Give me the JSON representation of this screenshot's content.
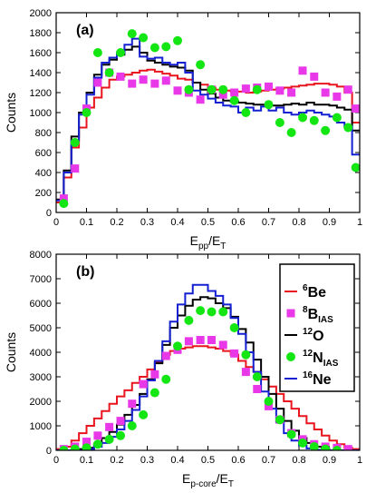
{
  "chart_data": [
    {
      "type": "line",
      "panel_label": "(a)",
      "xlabel": {
        "main": "E",
        "sub": "pp",
        "rest": "/E",
        "sub2": "T"
      },
      "ylabel": "Counts",
      "xlim": [
        0,
        1
      ],
      "ylim": [
        0,
        2000
      ],
      "x_ticks": [
        0,
        0.1,
        0.2,
        0.3,
        0.4,
        0.5,
        0.6,
        0.7,
        0.8,
        0.9,
        1
      ],
      "x_tick_labels": [
        "0",
        "0.1",
        "0.2",
        "0.3",
        "0.4",
        "0.5",
        "0.6",
        "0.7",
        "0.8",
        "0.9",
        "1"
      ],
      "y_ticks": [
        0,
        200,
        400,
        600,
        800,
        1000,
        1200,
        1400,
        1600,
        1800,
        2000
      ],
      "y_tick_labels": [
        "0",
        "200",
        "400",
        "600",
        "800",
        "1000",
        "1200",
        "1400",
        "1600",
        "1800",
        "2000"
      ],
      "grid": false,
      "bin_edges": [
        0,
        0.025,
        0.05,
        0.075,
        0.1,
        0.125,
        0.15,
        0.175,
        0.2,
        0.225,
        0.25,
        0.275,
        0.3,
        0.325,
        0.35,
        0.375,
        0.4,
        0.425,
        0.45,
        0.475,
        0.5,
        0.525,
        0.55,
        0.575,
        0.6,
        0.625,
        0.65,
        0.675,
        0.7,
        0.725,
        0.75,
        0.775,
        0.8,
        0.825,
        0.85,
        0.875,
        0.9,
        0.925,
        0.95,
        0.975,
        1
      ],
      "series": [
        {
          "key": "6Be",
          "kind": "step",
          "color": "#e8141e",
          "values": [
            100,
            350,
            650,
            850,
            1050,
            1150,
            1250,
            1330,
            1360,
            1380,
            1400,
            1420,
            1430,
            1410,
            1390,
            1370,
            1340,
            1330,
            1300,
            1280,
            1250,
            1230,
            1220,
            1210,
            1210,
            1200,
            1210,
            1220,
            1230,
            1240,
            1250,
            1260,
            1270,
            1280,
            1290,
            1290,
            1280,
            1260,
            1200,
            900
          ]
        },
        {
          "key": "12O",
          "kind": "step",
          "color": "#000000",
          "values": [
            130,
            420,
            760,
            1000,
            1200,
            1380,
            1480,
            1530,
            1580,
            1630,
            1660,
            1600,
            1520,
            1500,
            1480,
            1460,
            1450,
            1420,
            1300,
            1230,
            1190,
            1150,
            1120,
            1110,
            1100,
            1090,
            1080,
            1080,
            1070,
            1070,
            1080,
            1090,
            1080,
            1100,
            1080,
            1080,
            1070,
            1050,
            1030,
            820
          ]
        },
        {
          "key": "16Ne",
          "kind": "step",
          "color": "#1420d2",
          "values": [
            120,
            400,
            720,
            980,
            1180,
            1350,
            1500,
            1550,
            1600,
            1680,
            1740,
            1560,
            1540,
            1550,
            1500,
            1480,
            1500,
            1400,
            1220,
            1180,
            1140,
            1100,
            1070,
            1060,
            1000,
            1050,
            1020,
            1060,
            1020,
            1050,
            1000,
            980,
            1000,
            1020,
            1000,
            980,
            960,
            900,
            860,
            580
          ]
        },
        {
          "key": "8B_IAS",
          "kind": "marker",
          "marker": "square",
          "color": "#e838e8",
          "x": [
            0.025,
            0.062,
            0.1,
            0.137,
            0.175,
            0.212,
            0.25,
            0.287,
            0.325,
            0.362,
            0.4,
            0.437,
            0.475,
            0.512,
            0.55,
            0.587,
            0.625,
            0.662,
            0.7,
            0.737,
            0.775,
            0.812,
            0.85,
            0.887,
            0.925,
            0.962,
            0.987
          ],
          "values": [
            140,
            440,
            1040,
            1300,
            1400,
            1360,
            1290,
            1330,
            1290,
            1320,
            1220,
            1200,
            1130,
            1230,
            1180,
            1200,
            1240,
            1250,
            1260,
            1220,
            1200,
            1420,
            1360,
            1200,
            1160,
            1230,
            1040
          ]
        },
        {
          "key": "12N_IAS",
          "kind": "marker",
          "marker": "circle",
          "color": "#14e614",
          "x": [
            0.025,
            0.062,
            0.1,
            0.137,
            0.175,
            0.212,
            0.25,
            0.287,
            0.325,
            0.362,
            0.4,
            0.437,
            0.475,
            0.512,
            0.55,
            0.587,
            0.625,
            0.662,
            0.7,
            0.737,
            0.775,
            0.812,
            0.85,
            0.887,
            0.925,
            0.962,
            0.987
          ],
          "values": [
            90,
            700,
            1000,
            1600,
            1400,
            1600,
            1790,
            1750,
            1650,
            1660,
            1720,
            1230,
            1480,
            1230,
            1230,
            1120,
            1000,
            1230,
            1080,
            900,
            800,
            950,
            920,
            820,
            950,
            850,
            450
          ]
        }
      ]
    },
    {
      "type": "line",
      "panel_label": "(b)",
      "xlabel": {
        "main": "E",
        "sub": "p-core",
        "rest": "/E",
        "sub2": "T"
      },
      "ylabel": "Counts",
      "xlim": [
        0,
        1
      ],
      "ylim": [
        0,
        8000
      ],
      "x_ticks": [
        0,
        0.1,
        0.2,
        0.3,
        0.4,
        0.5,
        0.6,
        0.7,
        0.8,
        0.9,
        1
      ],
      "x_tick_labels": [
        "0",
        "0.1",
        "0.2",
        "0.3",
        "0.4",
        "0.5",
        "0.6",
        "0.7",
        "0.8",
        "0.9",
        "1"
      ],
      "y_ticks": [
        0,
        1000,
        2000,
        3000,
        4000,
        5000,
        6000,
        7000,
        8000
      ],
      "y_tick_labels": [
        "0",
        "1000",
        "2000",
        "3000",
        "4000",
        "5000",
        "6000",
        "7000",
        "8000"
      ],
      "grid": false,
      "legend_position": "right",
      "bin_edges": [
        0,
        0.025,
        0.05,
        0.075,
        0.1,
        0.125,
        0.15,
        0.175,
        0.2,
        0.225,
        0.25,
        0.275,
        0.3,
        0.325,
        0.35,
        0.375,
        0.4,
        0.425,
        0.45,
        0.475,
        0.5,
        0.525,
        0.55,
        0.575,
        0.6,
        0.625,
        0.65,
        0.675,
        0.7,
        0.725,
        0.75,
        0.775,
        0.8,
        0.825,
        0.85,
        0.875,
        0.9,
        0.925,
        0.95,
        0.975,
        1
      ],
      "series": [
        {
          "key": "6Be",
          "kind": "step",
          "color": "#e8141e",
          "values": [
            50,
            150,
            400,
            700,
            1000,
            1300,
            1600,
            1900,
            2200,
            2450,
            2750,
            3000,
            3300,
            3600,
            3900,
            4050,
            4150,
            4200,
            4250,
            4250,
            4200,
            4150,
            4050,
            3900,
            3650,
            3400,
            3200,
            2900,
            2600,
            2300,
            2000,
            1700,
            1400,
            1100,
            850,
            600,
            400,
            250,
            100,
            50
          ]
        },
        {
          "key": "12O",
          "kind": "step",
          "color": "#000000",
          "values": [
            0,
            0,
            0,
            50,
            100,
            250,
            500,
            750,
            1050,
            1450,
            1850,
            2300,
            2900,
            3550,
            4300,
            5000,
            5500,
            5900,
            6150,
            6250,
            6200,
            6000,
            5800,
            5450,
            4950,
            4400,
            3700,
            3000,
            2300,
            1700,
            1200,
            800,
            500,
            300,
            150,
            50,
            0,
            0,
            0,
            0
          ]
        },
        {
          "key": "16Ne",
          "kind": "step",
          "color": "#1420d2",
          "values": [
            0,
            0,
            0,
            0,
            50,
            150,
            300,
            550,
            850,
            1200,
            1650,
            2200,
            2850,
            3650,
            4450,
            5250,
            5950,
            6400,
            6750,
            6750,
            6500,
            6300,
            5950,
            5400,
            4750,
            4000,
            3200,
            2400,
            1700,
            1150,
            700,
            400,
            200,
            80,
            20,
            0,
            0,
            0,
            0,
            0
          ]
        },
        {
          "key": "8B_IAS",
          "kind": "marker",
          "marker": "square",
          "color": "#e838e8",
          "x": [
            0.025,
            0.062,
            0.1,
            0.137,
            0.175,
            0.212,
            0.25,
            0.287,
            0.325,
            0.362,
            0.4,
            0.437,
            0.475,
            0.512,
            0.55,
            0.587,
            0.625,
            0.662,
            0.7,
            0.737,
            0.775,
            0.812,
            0.85,
            0.887,
            0.925,
            0.962
          ],
          "values": [
            50,
            150,
            350,
            600,
            950,
            1200,
            1900,
            2700,
            3100,
            3850,
            4100,
            4450,
            4500,
            4500,
            4300,
            3950,
            3200,
            2500,
            1800,
            1250,
            700,
            450,
            250,
            150,
            100,
            50
          ]
        },
        {
          "key": "12N_IAS",
          "kind": "marker",
          "marker": "circle",
          "color": "#14e614",
          "x": [
            0.025,
            0.062,
            0.1,
            0.137,
            0.175,
            0.212,
            0.25,
            0.287,
            0.325,
            0.362,
            0.4,
            0.437,
            0.475,
            0.512,
            0.55,
            0.587,
            0.625,
            0.662,
            0.7,
            0.737,
            0.775,
            0.812,
            0.85,
            0.887,
            0.925
          ],
          "values": [
            0,
            50,
            100,
            250,
            450,
            600,
            1000,
            1450,
            2350,
            2900,
            4250,
            5300,
            5700,
            5650,
            5650,
            5000,
            3900,
            3000,
            2000,
            1250,
            650,
            300,
            150,
            50,
            0
          ]
        }
      ],
      "legend": [
        {
          "key": "6Be",
          "sup": "6",
          "base": "Be",
          "sub": ""
        },
        {
          "key": "8B_IAS",
          "sup": "8",
          "base": "B",
          "sub": "IAS"
        },
        {
          "key": "12O",
          "sup": "12",
          "base": "O",
          "sub": ""
        },
        {
          "key": "12N_IAS",
          "sup": "12",
          "base": "N",
          "sub": "IAS"
        },
        {
          "key": "16Ne",
          "sup": "16",
          "base": "Ne",
          "sub": ""
        }
      ]
    }
  ]
}
